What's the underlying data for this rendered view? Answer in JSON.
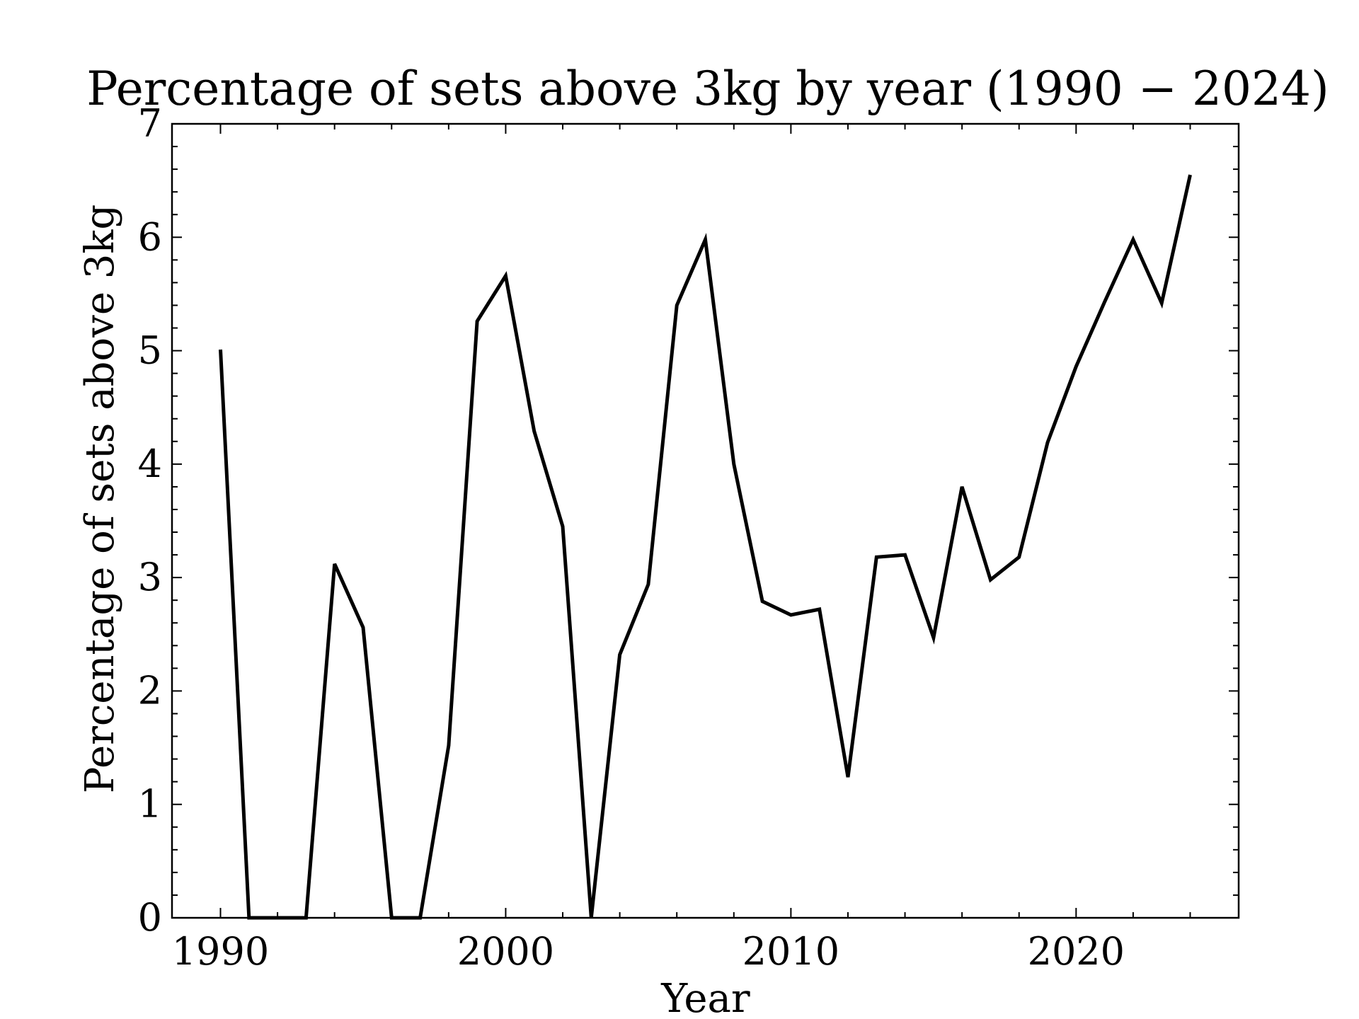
{
  "chart_data": {
    "type": "line",
    "title": "Percentage of sets above 3kg by year (1990 − 2024)",
    "xlabel": "Year",
    "ylabel": "Percentage of sets above 3kg",
    "xlim": [
      1988.3,
      2025.7
    ],
    "ylim": [
      0,
      7
    ],
    "xticks": [
      1990,
      2000,
      2010,
      2020
    ],
    "yticks": [
      0,
      1,
      2,
      3,
      4,
      5,
      6,
      7
    ],
    "grid": false,
    "line_color": "#000000",
    "series": [
      {
        "x": [
          1990,
          1991,
          1992,
          1993,
          1994,
          1995,
          1996,
          1997,
          1998,
          1999,
          2000,
          2001,
          2002,
          2003,
          2004,
          2005,
          2006,
          2007,
          2008,
          2009,
          2010,
          2011,
          2012,
          2013,
          2014,
          2015,
          2016,
          2017,
          2018,
          2019,
          2020,
          2021,
          2022,
          2023,
          2024
        ],
        "values": [
          5.01,
          0.0,
          0.0,
          0.0,
          3.12,
          2.56,
          0.0,
          0.0,
          1.52,
          5.26,
          5.66,
          4.29,
          3.45,
          0.0,
          2.32,
          2.94,
          5.4,
          5.98,
          4.0,
          2.79,
          2.67,
          2.72,
          1.24,
          3.18,
          3.2,
          2.47,
          3.8,
          2.98,
          3.18,
          4.19,
          4.86,
          5.43,
          5.98,
          5.42,
          6.55
        ]
      }
    ]
  }
}
